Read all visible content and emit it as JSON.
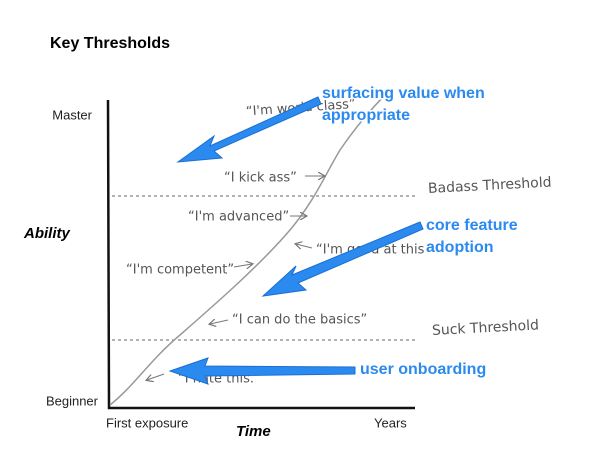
{
  "title": "Key Thresholds",
  "y_axis": {
    "label": "Ability",
    "top": "Master",
    "bottom": "Beginner"
  },
  "x_axis": {
    "label": "Time",
    "left": "First exposure",
    "right": "Years"
  },
  "thresholds": [
    "Badass Threshold",
    "Suck Threshold"
  ],
  "quotes": [
    "“I'm world class”",
    "“I kick ass”",
    "“I'm advanced”",
    "“I'm good at this”",
    "“I'm competent”",
    "“I can do the basics”",
    "“I hate this.”"
  ],
  "annotations": [
    {
      "lines": [
        "surfacing value when",
        "appropriate"
      ]
    },
    {
      "lines": [
        "core feature",
        "adoption"
      ]
    },
    {
      "lines": [
        "user onboarding"
      ]
    }
  ]
}
